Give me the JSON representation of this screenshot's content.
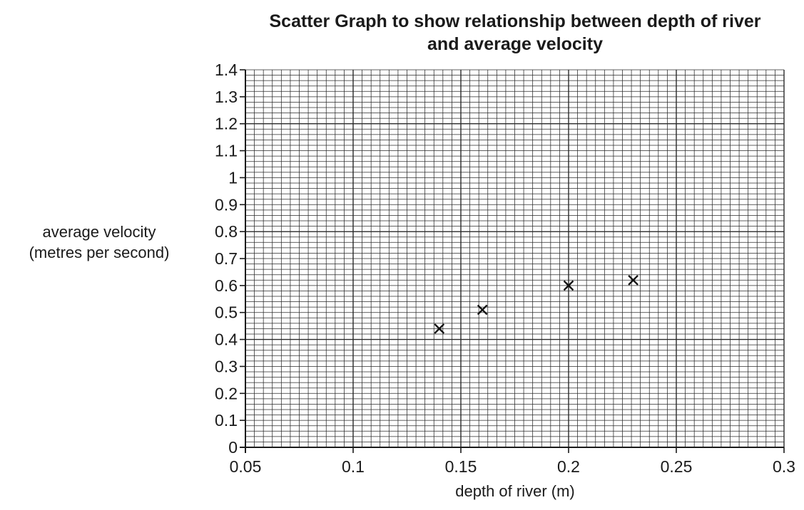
{
  "chart_data": {
    "type": "scatter",
    "title_lines": [
      "Scatter Graph to show relationship between depth of river",
      "and average velocity"
    ],
    "xlabel": "depth of river (m)",
    "ylabel_lines": [
      "average velocity",
      "(metres per second)"
    ],
    "xlim": [
      0.05,
      0.3
    ],
    "ylim": [
      0,
      1.4
    ],
    "x_ticks": [
      0.05,
      0.1,
      0.15,
      0.2,
      0.25,
      0.3
    ],
    "x_tick_labels": [
      "0.05",
      "0.1",
      "0.15",
      "0.2",
      "0.25",
      "0.3"
    ],
    "y_ticks": [
      0,
      0.1,
      0.2,
      0.3,
      0.4,
      0.5,
      0.6,
      0.7,
      0.8,
      0.9,
      1,
      1.1,
      1.2,
      1.3,
      1.4
    ],
    "y_tick_labels": [
      "0",
      "0.1",
      "0.2",
      "0.3",
      "0.4",
      "0.5",
      "0.6",
      "0.7",
      "0.8",
      "0.9",
      "1",
      "1.1",
      "1.2",
      "1.3",
      "1.4"
    ],
    "grid": true,
    "marker": "x",
    "points": [
      {
        "x": 0.14,
        "y": 0.44
      },
      {
        "x": 0.16,
        "y": 0.51
      },
      {
        "x": 0.2,
        "y": 0.6
      },
      {
        "x": 0.23,
        "y": 0.62
      }
    ]
  }
}
